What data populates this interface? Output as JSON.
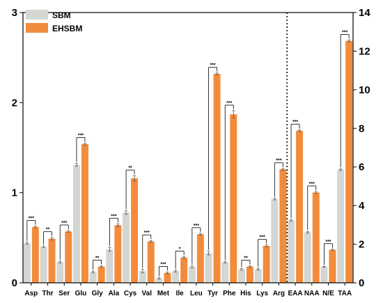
{
  "chart_data": {
    "type": "bar",
    "categories": [
      "Asp",
      "Thr",
      "Ser",
      "Glu",
      "Gly",
      "Ala",
      "Cys",
      "Val",
      "Met",
      "Ile",
      "Leu",
      "Tyr",
      "Phe",
      "His",
      "Lys",
      "Arg",
      "EAA",
      "NAA",
      "N/E",
      "TAA"
    ],
    "series": [
      {
        "name": "SBM",
        "color": "#d4d6d2",
        "values": [
          0.44,
          0.4,
          0.23,
          1.31,
          0.12,
          0.37,
          0.78,
          0.13,
          0.05,
          0.13,
          0.18,
          0.33,
          0.23,
          0.15,
          0.15,
          0.93,
          3.24,
          2.62,
          0.83,
          5.87
        ],
        "errors": [
          0.01,
          0.01,
          0.01,
          0.015,
          0.01,
          0.02,
          0.02,
          0.02,
          0.01,
          0.01,
          0.015,
          0.02,
          0.01,
          0.01,
          0.01,
          0.01,
          0.04,
          0.04,
          0.02,
          0.04
        ]
      },
      {
        "name": "EHSBM",
        "color": "#f28c3c",
        "values": [
          0.62,
          0.49,
          0.57,
          1.54,
          0.18,
          0.64,
          1.16,
          0.46,
          0.11,
          0.28,
          0.54,
          2.32,
          1.87,
          0.18,
          0.41,
          1.26,
          7.88,
          4.68,
          1.71,
          12.53
        ],
        "errors": [
          0.01,
          0.015,
          0.01,
          0.01,
          0.01,
          0.015,
          0.03,
          0.01,
          0.01,
          0.01,
          0.01,
          0.01,
          0.04,
          0.01,
          0.01,
          0.01,
          0.05,
          0.05,
          0.03,
          0.05
        ]
      }
    ],
    "significance": [
      "***",
      "**",
      "***",
      "***",
      "**",
      "***",
      "**",
      "***",
      "***",
      "*",
      "***",
      "***",
      "***",
      "**",
      "***",
      "***",
      "***",
      "***",
      "***",
      "***"
    ],
    "left_axis": {
      "range": [
        0,
        3
      ],
      "ticks": [
        "0",
        "1",
        "2",
        "3"
      ],
      "applies_to": [
        "Asp",
        "Thr",
        "Ser",
        "Glu",
        "Gly",
        "Ala",
        "Cys",
        "Val",
        "Met",
        "Ile",
        "Leu",
        "Tyr",
        "Phe",
        "His",
        "Lys",
        "Arg"
      ]
    },
    "right_axis": {
      "range": [
        0,
        14
      ],
      "ticks": [
        "0",
        "2",
        "4",
        "6",
        "8",
        "10",
        "12",
        "14"
      ],
      "applies_to": [
        "EAA",
        "NAA",
        "N/E",
        "TAA"
      ]
    },
    "divider_after": "Arg",
    "legend": {
      "placement": "top-left",
      "entries": [
        "SBM",
        "EHSBM"
      ]
    },
    "title": "",
    "xlabel": "",
    "ylabel": "",
    "grid": false
  }
}
